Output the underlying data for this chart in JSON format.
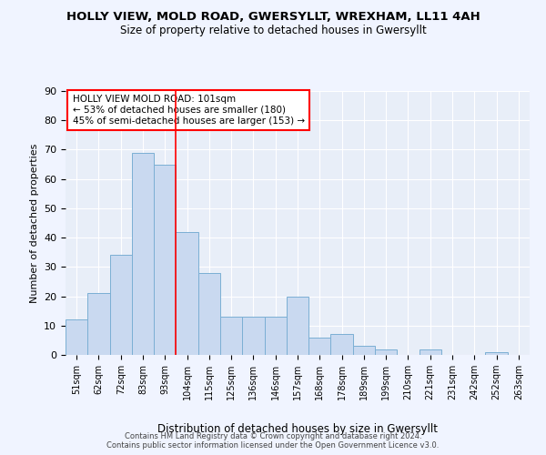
{
  "title": "HOLLY VIEW, MOLD ROAD, GWERSYLLT, WREXHAM, LL11 4AH",
  "subtitle": "Size of property relative to detached houses in Gwersyllt",
  "xlabel": "Distribution of detached houses by size in Gwersyllt",
  "ylabel": "Number of detached properties",
  "bin_labels": [
    "51sqm",
    "62sqm",
    "72sqm",
    "83sqm",
    "93sqm",
    "104sqm",
    "115sqm",
    "125sqm",
    "136sqm",
    "146sqm",
    "157sqm",
    "168sqm",
    "178sqm",
    "189sqm",
    "199sqm",
    "210sqm",
    "221sqm",
    "231sqm",
    "242sqm",
    "252sqm",
    "263sqm"
  ],
  "bar_values": [
    12,
    21,
    34,
    69,
    65,
    42,
    28,
    13,
    13,
    13,
    20,
    6,
    7,
    3,
    2,
    0,
    2,
    0,
    0,
    1,
    0
  ],
  "bar_color": "#c9d9f0",
  "bar_edge_color": "#7bafd4",
  "red_line_x": 4.5,
  "annotation_line1": "HOLLY VIEW MOLD ROAD: 101sqm",
  "annotation_line2": "← 53% of detached houses are smaller (180)",
  "annotation_line3": "45% of semi-detached houses are larger (153) →",
  "footer_line1": "Contains HM Land Registry data © Crown copyright and database right 2024.",
  "footer_line2": "Contains public sector information licensed under the Open Government Licence v3.0.",
  "ylim": [
    0,
    90
  ],
  "fig_bg_color": "#f0f4ff",
  "plot_bg_color": "#e8eef8"
}
